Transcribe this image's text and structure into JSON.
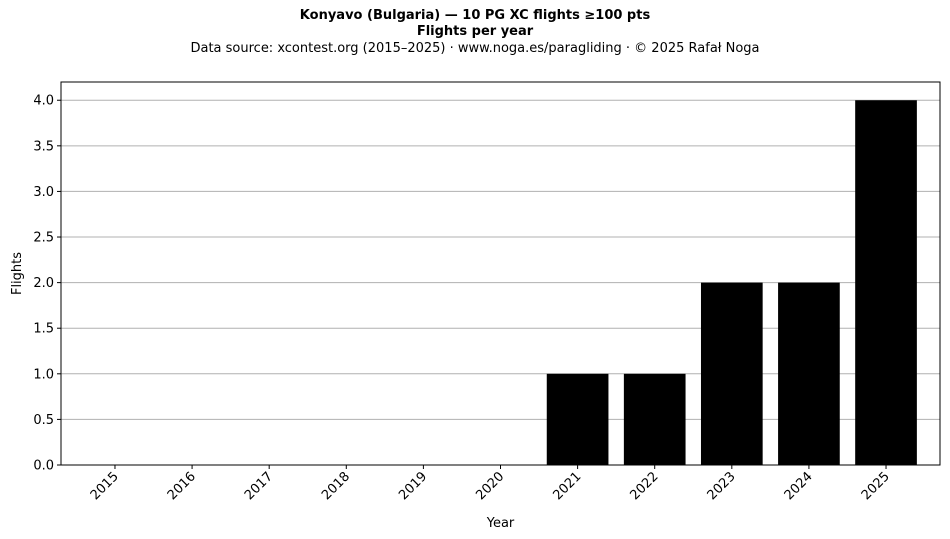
{
  "header": {
    "title": "Konyavo (Bulgaria)  —  10 PG XC flights ≥100 pts",
    "subtitle": "Flights per year",
    "source": "Data source: xcontest.org (2015–2025)  ·  www.noga.es/paragliding  ·  © 2025 Rafał Noga"
  },
  "chart_data": {
    "type": "bar",
    "title": "Konyavo (Bulgaria)  —  10 PG XC flights ≥100 pts",
    "subtitle": "Flights per year",
    "xlabel": "Year",
    "ylabel": "Flights",
    "categories": [
      "2015",
      "2016",
      "2017",
      "2018",
      "2019",
      "2020",
      "2021",
      "2022",
      "2023",
      "2024",
      "2025"
    ],
    "values": [
      0,
      0,
      0,
      0,
      0,
      0,
      1,
      1,
      2,
      2,
      4
    ],
    "ylim": [
      0,
      4.2
    ],
    "yticks": [
      "0.0",
      "0.5",
      "1.0",
      "1.5",
      "2.0",
      "2.5",
      "3.0",
      "3.5",
      "4.0"
    ],
    "grid": "horizontal",
    "bar_color": "#000000",
    "grid_color": "#b0b0b0"
  }
}
